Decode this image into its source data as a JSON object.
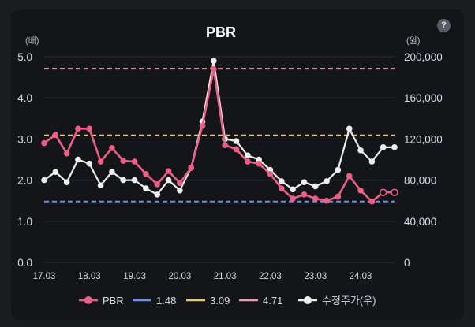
{
  "help_label": "?",
  "chart_data": {
    "type": "line",
    "title": "PBR",
    "left_unit": "(배)",
    "right_unit": "(원)",
    "left_ylim": [
      0,
      5
    ],
    "left_ticks": [
      "5.0",
      "4.0",
      "3.0",
      "2.0",
      "1.0",
      "0.0"
    ],
    "right_ylim": [
      0,
      200000
    ],
    "right_ticks": [
      "200,000",
      "160,000",
      "120,000",
      "80,000",
      "40,000",
      "0"
    ],
    "x_tick_labels": [
      "17.03",
      "18.03",
      "19.03",
      "20.03",
      "21.03",
      "22.03",
      "23.03",
      "24.03"
    ],
    "grid": true,
    "legend_position": "bottom",
    "series": [
      {
        "name": "PBR",
        "axis": "left",
        "color": "#ec5f86",
        "values": [
          2.9,
          3.1,
          2.65,
          3.25,
          3.25,
          2.45,
          2.78,
          2.47,
          2.45,
          2.15,
          1.9,
          2.22,
          1.93,
          2.3,
          3.32,
          4.7,
          2.85,
          2.75,
          2.45,
          2.4,
          2.15,
          1.8,
          1.55,
          1.65,
          1.55,
          1.5,
          1.6,
          2.1,
          1.75,
          1.48,
          1.7,
          1.7
        ],
        "open_markers_from_index": 30
      },
      {
        "name": "1.48",
        "axis": "left",
        "color": "#6b8ef0",
        "constant": 1.48,
        "dashed": true
      },
      {
        "name": "3.09",
        "axis": "left",
        "color": "#e8cb72",
        "constant": 3.09,
        "dashed": true
      },
      {
        "name": "4.71",
        "axis": "left",
        "color": "#ee9db4",
        "constant": 4.71,
        "dashed": true
      },
      {
        "name": "수정주가(우)",
        "axis": "right",
        "color": "#eeeeee",
        "values": [
          80000,
          88000,
          78000,
          100000,
          96000,
          75000,
          88000,
          80000,
          80000,
          72000,
          66000,
          80000,
          70000,
          92000,
          137000,
          196000,
          120000,
          118000,
          104000,
          100000,
          90000,
          79000,
          71000,
          78000,
          74000,
          79000,
          90000,
          130000,
          109000,
          98000,
          112000,
          112000
        ]
      }
    ]
  }
}
